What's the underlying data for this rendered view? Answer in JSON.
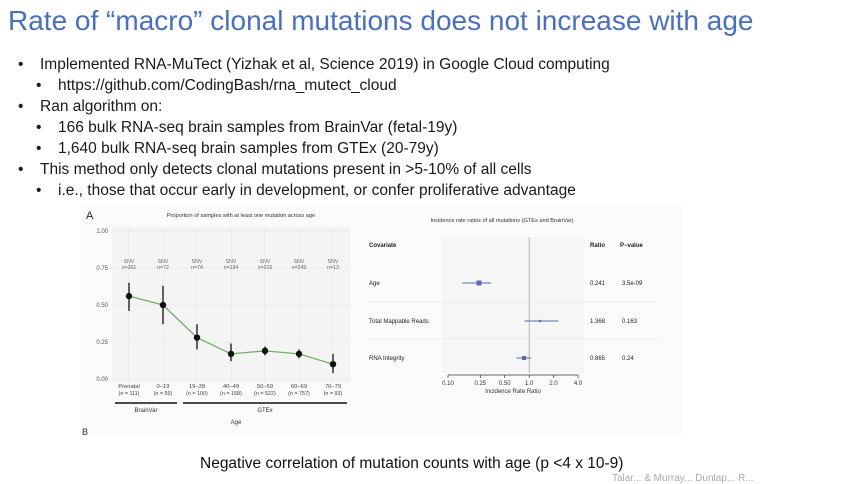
{
  "slide": {
    "title": "Rate of “macro” clonal mutations does not increase with age",
    "bullets": [
      {
        "level": 1,
        "text": "Implemented RNA-MuTect (Yizhak et al, Science 2019) in Google Cloud computing"
      },
      {
        "level": 2,
        "text": "https://github.com/CodingBash/rna_mutect_cloud"
      },
      {
        "level": 1,
        "text": "Ran algorithm on:"
      },
      {
        "level": 2,
        "text": "166 bulk RNA-seq brain samples from BrainVar (fetal-19y)"
      },
      {
        "level": 2,
        "text": "1,640 bulk RNA-seq brain samples from GTEx (20-79y)"
      },
      {
        "level": 1,
        "text": "This method only detects clonal mutations present in >5-10% of all cells"
      },
      {
        "level": 2,
        "text": "i.e., those that occur early in development, or confer proliferative advantage"
      }
    ],
    "caption": "Negative correlation of mutation counts with age (p <4 x 10-9)",
    "footer_text": "Talar... & Murray... Dunlap... R..."
  },
  "chart_data": [
    {
      "type": "line",
      "panel_label": "A",
      "title": "Proportion of samples with at least one mutation across age",
      "xlabel": "Age",
      "ylabel": "",
      "ylim": [
        0,
        1
      ],
      "yticks": [
        "0.00",
        "0.25",
        "0.50",
        "0.75",
        "1.00"
      ],
      "ytick_values": [
        0,
        0.25,
        0.5,
        0.75,
        1.0
      ],
      "categories": [
        "Prenatal",
        "0–19",
        "19–39",
        "40–49",
        "50–59",
        "60–69",
        "70–79"
      ],
      "sample_sizes": [
        "(n = 111)",
        "(n = 55)",
        "(n = 100)",
        "(n = 168)",
        "(n = 522)",
        "(n = 757)",
        "(n = 93)"
      ],
      "snv_label": "SNV",
      "snv_counts": [
        "n=361",
        "n=72",
        "n=74",
        "n=194",
        "n=216",
        "n=249",
        "n=13"
      ],
      "series": [
        {
          "name": "proportion",
          "values": [
            0.56,
            0.5,
            0.28,
            0.17,
            0.19,
            0.17,
            0.1
          ],
          "ci_low": [
            0.46,
            0.37,
            0.2,
            0.12,
            0.16,
            0.14,
            0.04
          ],
          "ci_high": [
            0.65,
            0.63,
            0.37,
            0.24,
            0.22,
            0.2,
            0.17
          ]
        }
      ],
      "groups": [
        {
          "name": "BrainVar",
          "categories": [
            "Prenatal",
            "0–19"
          ]
        },
        {
          "name": "GTEx",
          "categories": [
            "19–39",
            "40–49",
            "50–59",
            "60–69",
            "70–79"
          ]
        }
      ],
      "line_color": "#74b06a",
      "panel_b_fragment": "B",
      "grid": true
    },
    {
      "type": "forest",
      "title": "Incidence rate ratios of all mutations (GTEx and BrainVar)",
      "xlabel": "Incidence Rate Ratio",
      "x_scale": "log",
      "xticks": [
        "0.10",
        "0.25",
        "0.50",
        "1.0",
        "2.0",
        "4.0"
      ],
      "xtick_values": [
        0.1,
        0.25,
        0.5,
        1.0,
        2.0,
        4.0
      ],
      "columns": {
        "covariate": "Covariate",
        "ratio": "Ratio",
        "pvalue": "P−value"
      },
      "rows": [
        {
          "covariate": "Age",
          "ratio_label": "0.241",
          "pvalue": "3.5e-09",
          "estimate": 0.241,
          "ci_low": 0.15,
          "ci_high": 0.34
        },
        {
          "covariate": "Total Mappable Reads",
          "ratio_label": "1.368",
          "pvalue": "0.163",
          "estimate": 1.368,
          "ci_low": 0.88,
          "ci_high": 2.3
        },
        {
          "covariate": "RNA Integrity",
          "ratio_label": "0.865",
          "pvalue": "0.24",
          "estimate": 0.865,
          "ci_low": 0.7,
          "ci_high": 1.06
        }
      ],
      "point_color": "#5b68b2"
    }
  ]
}
